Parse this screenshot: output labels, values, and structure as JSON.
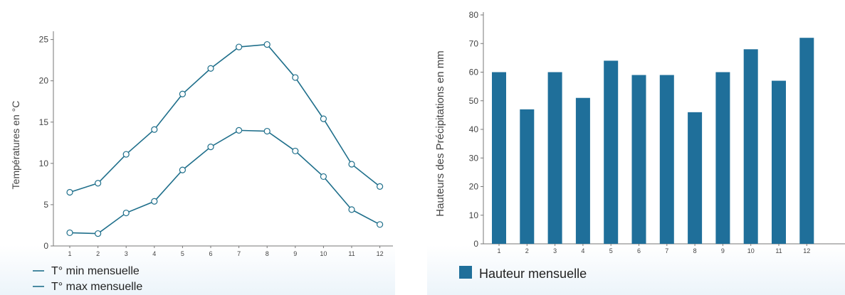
{
  "colors": {
    "line": "#1f6f8b",
    "marker_fill": "#ffffff",
    "bar": "#1f6f9a",
    "axis": "#777777",
    "tick_text": "#444444",
    "glow": "#ecf4fa"
  },
  "chart_data": [
    {
      "type": "line",
      "ylabel": "Températures en °C",
      "xlabel": "",
      "x": [
        1,
        2,
        3,
        4,
        5,
        6,
        7,
        8,
        9,
        10,
        11,
        12
      ],
      "x_tick_labels": [
        "1",
        "2",
        "3",
        "4",
        "5",
        "6",
        "7",
        "8",
        "9",
        "10",
        "11",
        "12"
      ],
      "ylim": [
        0,
        26
      ],
      "y_ticks": [
        0,
        5,
        10,
        15,
        20,
        25
      ],
      "y_tick_labels": [
        "0",
        "5",
        "10",
        "15",
        "20",
        "25"
      ],
      "grid": false,
      "legend_position": "bottom-left",
      "series": [
        {
          "name": "T° min mensuelle",
          "values": [
            1.6,
            1.5,
            4.0,
            5.4,
            9.2,
            12.0,
            14.0,
            13.9,
            11.5,
            8.4,
            4.4,
            2.6
          ]
        },
        {
          "name": "T° max mensuelle",
          "values": [
            6.5,
            7.6,
            11.1,
            14.1,
            18.4,
            21.5,
            24.1,
            24.4,
            20.4,
            15.4,
            9.9,
            7.2
          ]
        }
      ]
    },
    {
      "type": "bar",
      "ylabel": "Hauteurs des Précipitations en mm",
      "xlabel": "",
      "categories": [
        "1",
        "2",
        "3",
        "4",
        "5",
        "6",
        "7",
        "8",
        "9",
        "10",
        "11",
        "12"
      ],
      "ylim": [
        0,
        80
      ],
      "y_ticks": [
        0,
        10,
        20,
        30,
        40,
        50,
        60,
        70,
        80
      ],
      "y_tick_labels": [
        "0",
        "10",
        "20",
        "30",
        "40",
        "50",
        "60",
        "70",
        "80"
      ],
      "grid": false,
      "legend_position": "bottom-left",
      "series": [
        {
          "name": "Hauteur mensuelle",
          "values": [
            60,
            47,
            60,
            51,
            64,
            59,
            59,
            46,
            60,
            68,
            57,
            72
          ]
        }
      ]
    }
  ]
}
